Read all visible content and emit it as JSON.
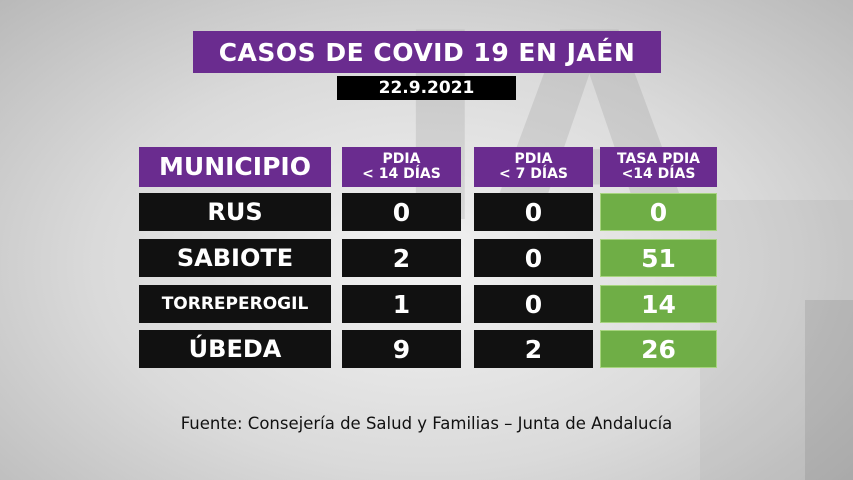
{
  "title": "CASOS DE COVID 19 EN JAÉN",
  "date": "22.9.2021",
  "headers": {
    "municipio": "MUNICIPIO",
    "pdia14_line1": "PDIA",
    "pdia14_line2": "< 14 DÍAS",
    "pdia7_line1": "PDIA",
    "pdia7_line2": "< 7 DÍAS",
    "tasa_line1": "TASA PDIA",
    "tasa_line2": "<14 DÍAS"
  },
  "rows": [
    {
      "municipio": "RUS",
      "pdia14": "0",
      "pdia7": "0",
      "tasa": "0"
    },
    {
      "municipio": "SABIOTE",
      "pdia14": "2",
      "pdia7": "0",
      "tasa": "51"
    },
    {
      "municipio": "TORREPEROGIL",
      "pdia14": "1",
      "pdia7": "0",
      "tasa": "14"
    },
    {
      "municipio": "ÚBEDA",
      "pdia14": "9",
      "pdia7": "2",
      "tasa": "26"
    }
  ],
  "source": "Fuente: Consejería de Salud y Familias – Junta de Andalucía",
  "colors": {
    "header_purple": "#6a2c8f",
    "cell_black": "#111111",
    "rate_green": "#6fae46"
  }
}
